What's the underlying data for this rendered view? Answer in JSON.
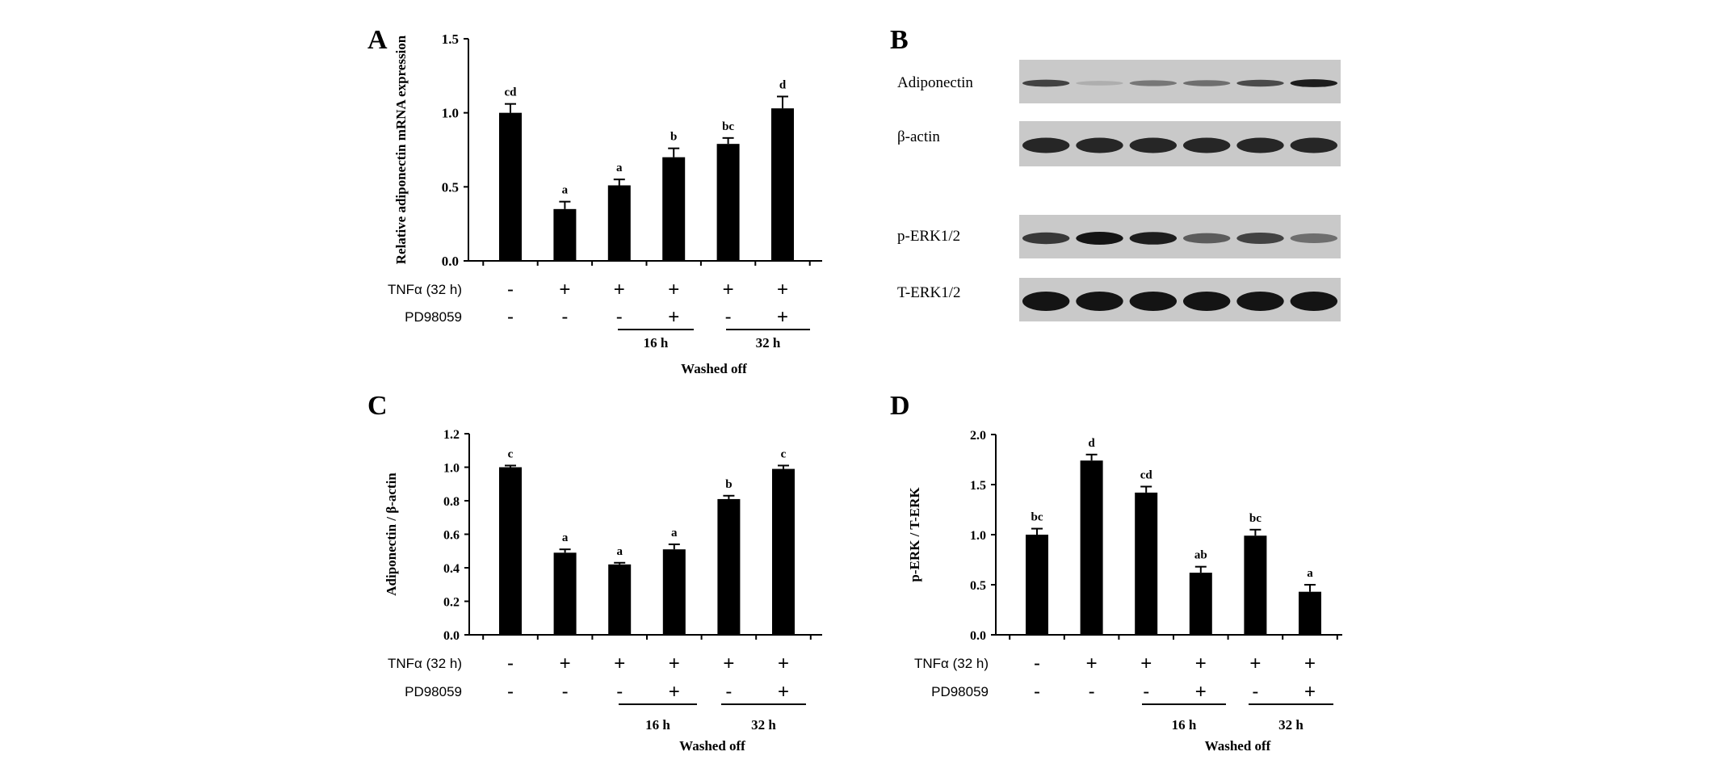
{
  "panels": {
    "A": {
      "letter": "A"
    },
    "B": {
      "letter": "B"
    },
    "C": {
      "letter": "C"
    },
    "D": {
      "letter": "D"
    }
  },
  "treatment_rows": {
    "tnf_label": "TNFα (32 h)",
    "pd_label": "PD98059",
    "tnf_signs": [
      "-",
      "+",
      "+",
      "+",
      "+",
      "+"
    ],
    "pd_signs": [
      "-",
      "-",
      "-",
      "+",
      "-",
      "+"
    ],
    "group_16h": "16 h",
    "group_32h": "32 h",
    "washed_off": "Washed off"
  },
  "blot": {
    "labels": [
      "Adiponectin",
      "β-actin",
      "p-ERK1/2",
      "T-ERK1/2"
    ],
    "band_intensity": {
      "adiponectin": [
        0.75,
        0.15,
        0.45,
        0.5,
        0.7,
        0.95
      ],
      "beta_actin": [
        0.9,
        0.9,
        0.9,
        0.9,
        0.9,
        0.9
      ],
      "p_erk": [
        0.8,
        1.0,
        0.95,
        0.6,
        0.75,
        0.5
      ],
      "t_erk": [
        1.0,
        1.0,
        1.0,
        1.0,
        1.0,
        1.0
      ]
    },
    "colors": {
      "membrane": "#c9c9c9",
      "band": "#141414"
    }
  },
  "chart_data": [
    {
      "panel": "A",
      "type": "bar",
      "ylabel": "Relative adiponectin mRNA expression",
      "ylim": [
        0,
        1.5
      ],
      "yticks": [
        "0.0",
        "0.5",
        "1.0",
        "1.5"
      ],
      "values": [
        1.0,
        0.35,
        0.51,
        0.7,
        0.79,
        1.03
      ],
      "errors": [
        0.06,
        0.05,
        0.04,
        0.06,
        0.04,
        0.08
      ],
      "labels": [
        "cd",
        "a",
        "a",
        "b",
        "bc",
        "d"
      ],
      "bar_color": "#000000"
    },
    {
      "panel": "C",
      "type": "bar",
      "ylabel": "Adiponectin / β-actin",
      "ylim": [
        0,
        1.2
      ],
      "yticks": [
        "0.0",
        "0.2",
        "0.4",
        "0.6",
        "0.8",
        "1.0",
        "1.2"
      ],
      "values": [
        1.0,
        0.49,
        0.42,
        0.51,
        0.81,
        0.99
      ],
      "errors": [
        0.01,
        0.02,
        0.01,
        0.03,
        0.02,
        0.02
      ],
      "labels": [
        "c",
        "a",
        "a",
        "a",
        "b",
        "c"
      ],
      "bar_color": "#000000"
    },
    {
      "panel": "D",
      "type": "bar",
      "ylabel": "p-ERK / T-ERK",
      "ylim": [
        0,
        2.0
      ],
      "yticks": [
        "0.0",
        "0.5",
        "1.0",
        "1.5",
        "2.0"
      ],
      "values": [
        1.0,
        1.74,
        1.42,
        0.62,
        0.99,
        0.43
      ],
      "errors": [
        0.06,
        0.06,
        0.06,
        0.06,
        0.06,
        0.07
      ],
      "labels": [
        "bc",
        "d",
        "cd",
        "ab",
        "bc",
        "a"
      ],
      "bar_color": "#000000"
    }
  ]
}
